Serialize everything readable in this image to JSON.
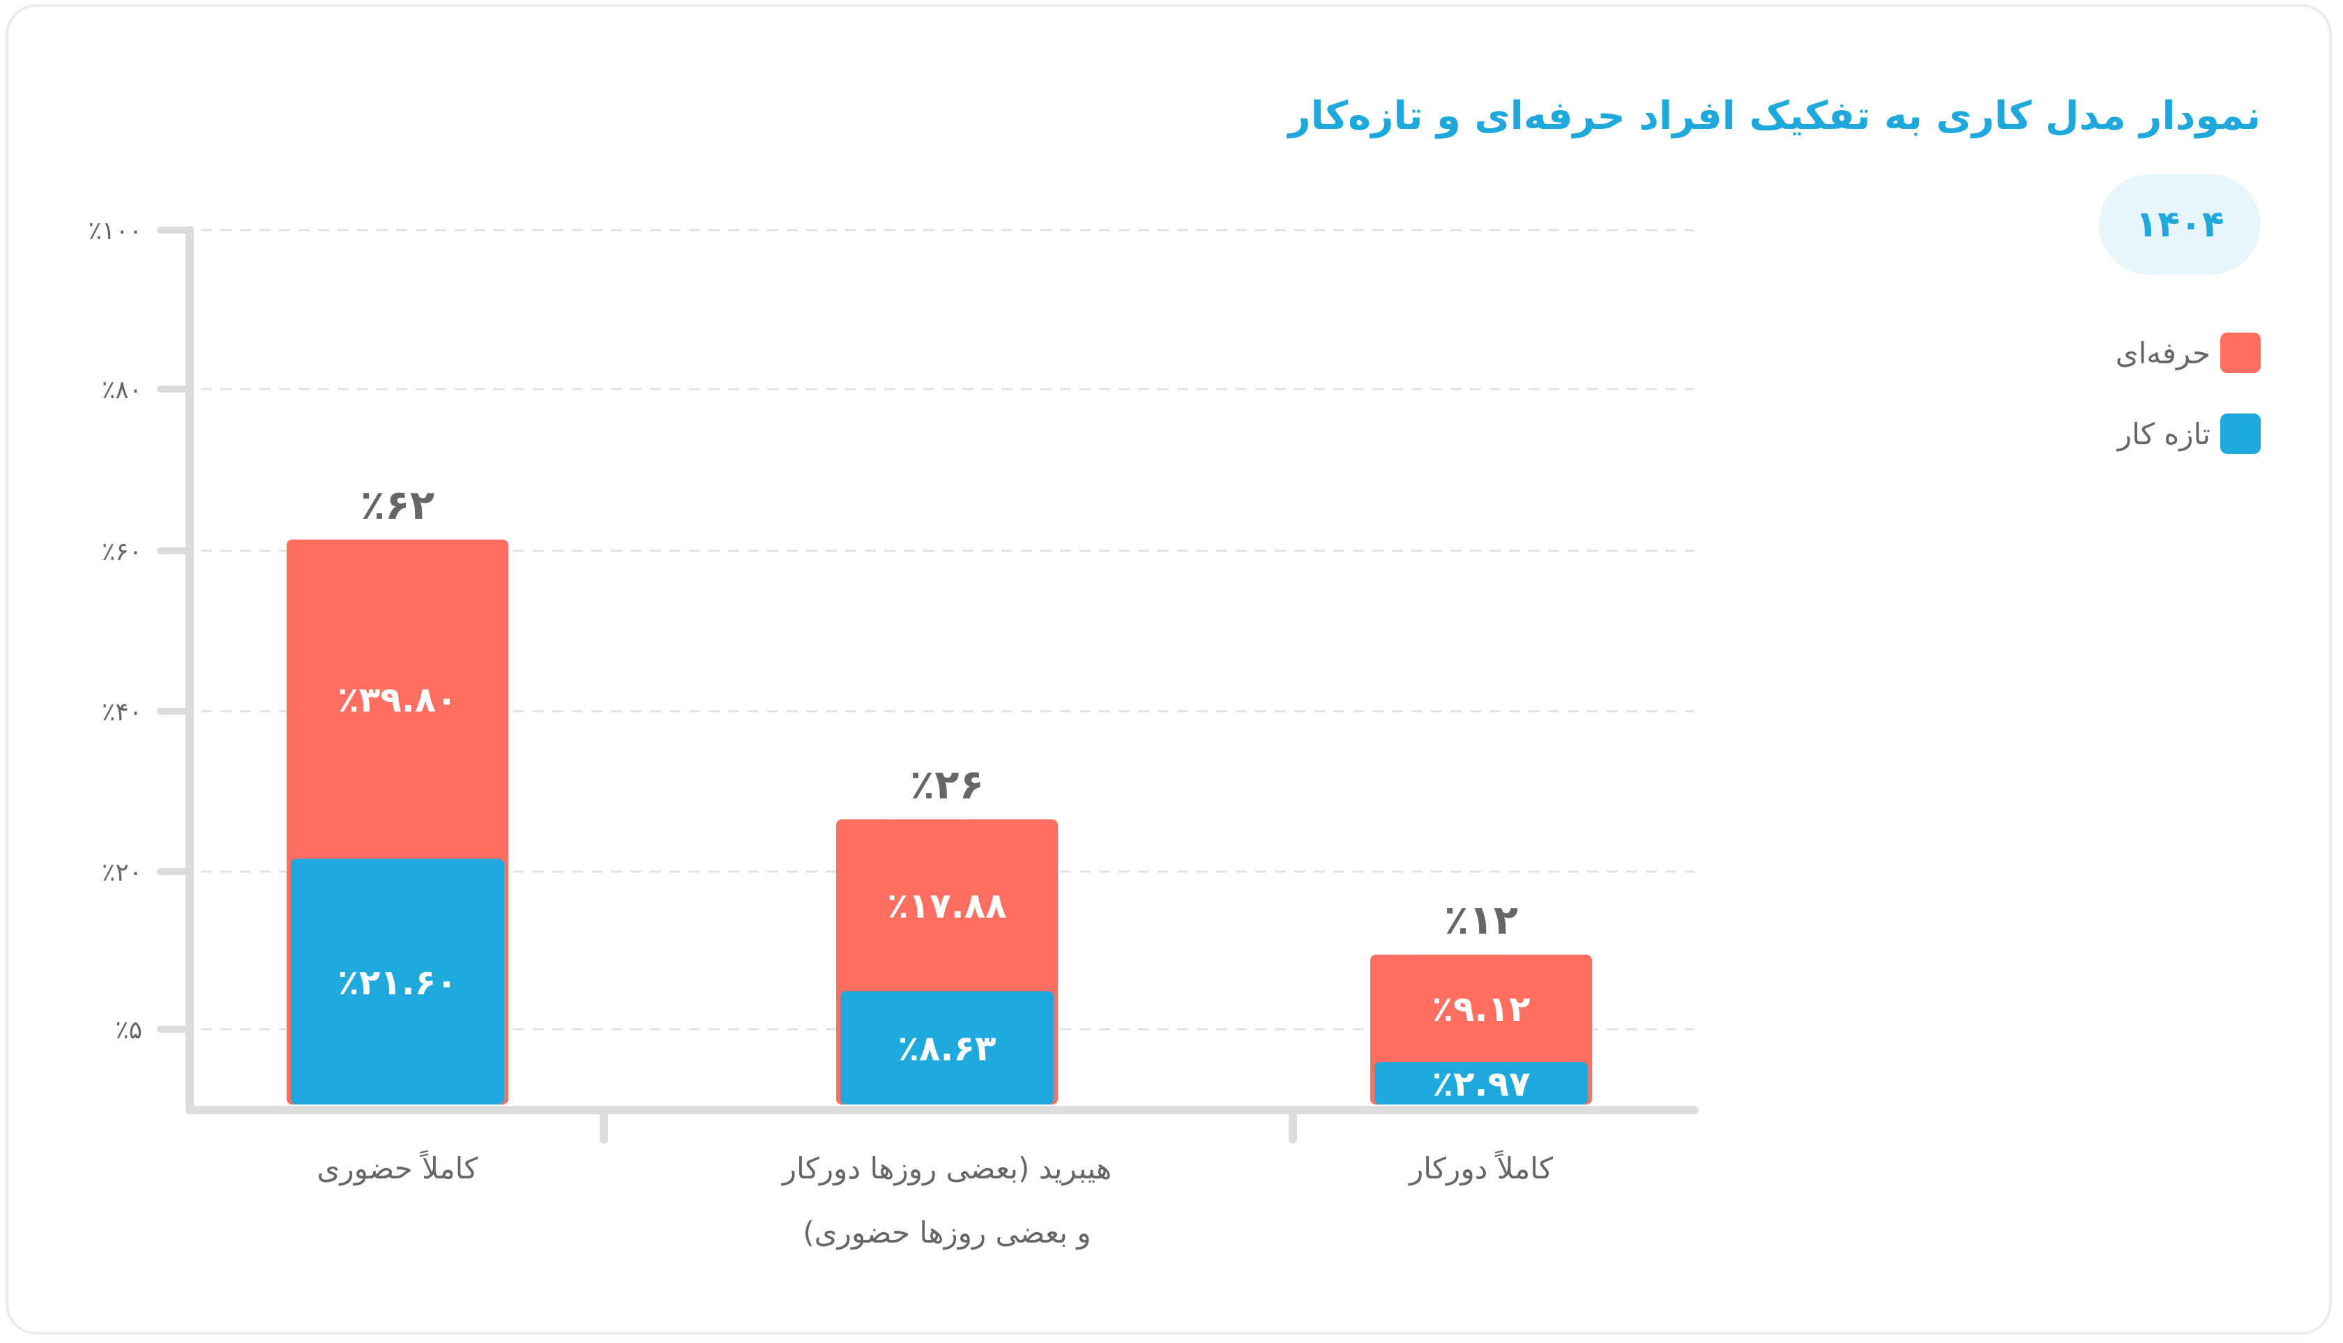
{
  "header": {
    "title": "نمودار مدل کاری به تفکیک افراد حرفه‌ای و تازه‌کار",
    "year": "۱۴۰۴"
  },
  "legend": {
    "items": [
      {
        "label": "حرفه‌ای",
        "color": "#ff6f61"
      },
      {
        "label": "تازه کار",
        "color": "#1ea8db"
      }
    ]
  },
  "chart_data": {
    "type": "bar",
    "stacked": true,
    "title": "نمودار مدل کاری به تفکیک افراد حرفه‌ای و تازه‌کار",
    "y_ticks": [
      {
        "value": 5,
        "label": "٪۵"
      },
      {
        "value": 20,
        "label": "٪۲۰"
      },
      {
        "value": 40,
        "label": "٪۴۰"
      },
      {
        "value": 60,
        "label": "٪۶۰"
      },
      {
        "value": 80,
        "label": "٪۸۰"
      },
      {
        "value": 100,
        "label": "٪۱۰۰"
      }
    ],
    "categories": [
      {
        "lines": [
          "کاملاً حضوری"
        ]
      },
      {
        "lines": [
          "هیبرید (بعضی روزها دورکار",
          "و بعضی روزها حضوری)"
        ]
      },
      {
        "lines": [
          "کاملاً دورکار"
        ]
      }
    ],
    "totals": [
      {
        "value": 62,
        "label": "٪۶۲"
      },
      {
        "value": 26,
        "label": "٪۲۶"
      },
      {
        "value": 12,
        "label": "٪۱۲"
      }
    ],
    "series": [
      {
        "name": "تازه کار",
        "color": "#1ea8db",
        "values": [
          21.6,
          8.63,
          2.97
        ],
        "labels": [
          "٪۲۱.۶۰",
          "٪۸.۶۳",
          "٪۲.۹۷"
        ]
      },
      {
        "name": "حرفه‌ای",
        "color": "#ff6f61",
        "values": [
          39.8,
          17.88,
          9.12
        ],
        "labels": [
          "٪۳۹.۸۰",
          "٪۱۷.۸۸",
          "٪۹.۱۲"
        ]
      }
    ],
    "grid": true,
    "legend_position": "right"
  }
}
